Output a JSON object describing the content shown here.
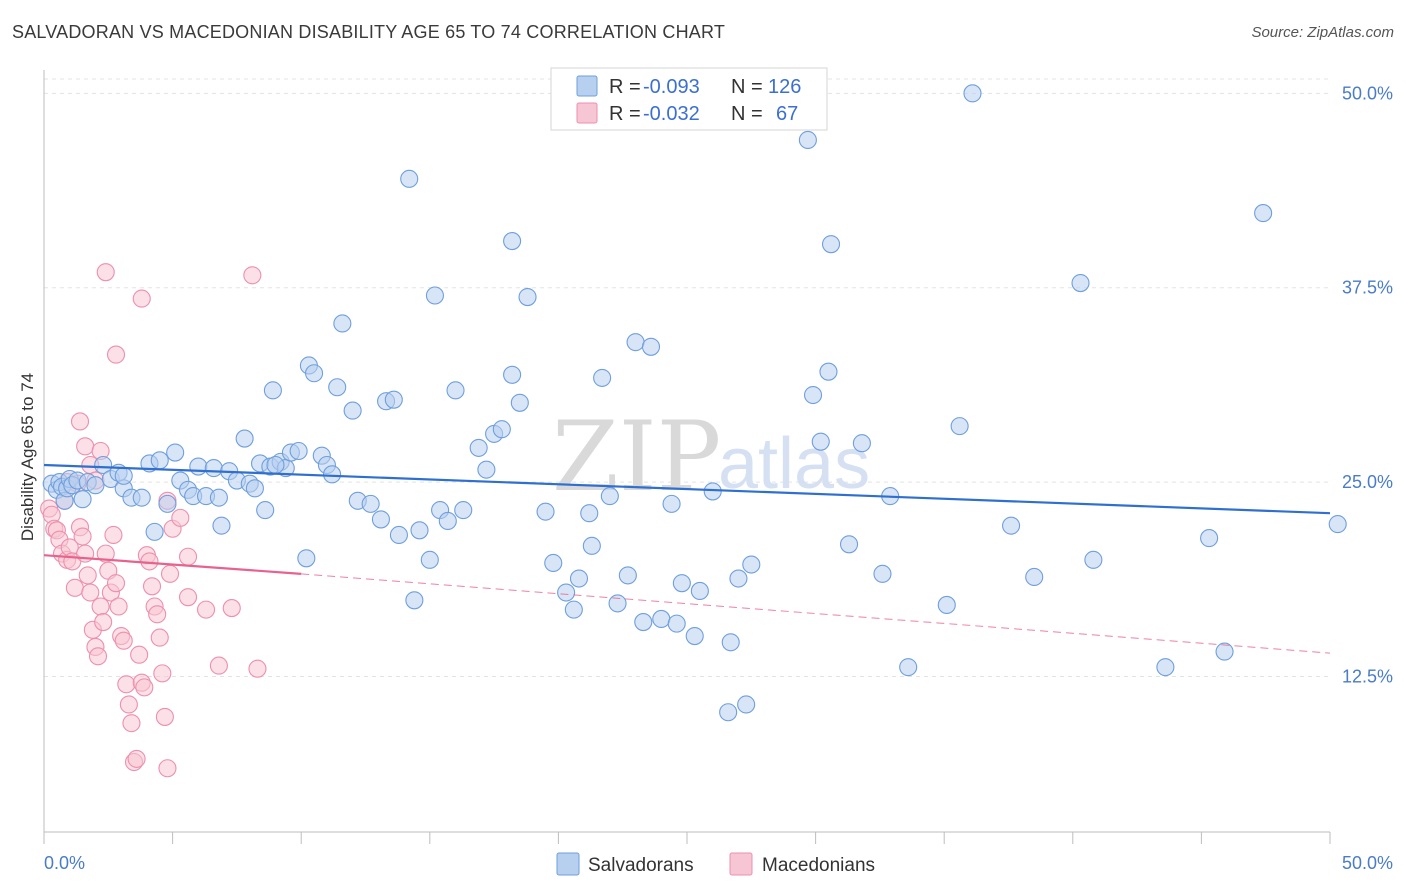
{
  "title": "SALVADORAN VS MACEDONIAN DISABILITY AGE 65 TO 74 CORRELATION CHART",
  "source": "Source: ZipAtlas.com",
  "watermark": {
    "zip": "ZIP",
    "atlas": "atlas"
  },
  "colors": {
    "blue_fill": "#b8d0f0",
    "blue_stroke": "#6f9fdc",
    "blue_line": "#2f6fd0",
    "pink_fill": "#f7c6d4",
    "pink_stroke": "#ee8fad",
    "pink_line": "#e8628e",
    "grid": "#e3e3e3",
    "axis": "#bdbdbd",
    "tick_label": "#4a7cc7"
  },
  "legend": {
    "rows": [
      {
        "r_label": "R =",
        "r_value": "-0.093",
        "n_label": "N =",
        "n_value": "126",
        "color": "blue"
      },
      {
        "r_label": "R =",
        "r_value": "-0.032",
        "n_label": "N =",
        "n_value": "67",
        "color": "pink"
      }
    ]
  },
  "bottom_legend": [
    {
      "label": "Salvadorans",
      "color": "blue"
    },
    {
      "label": "Macedonians",
      "color": "pink"
    }
  ],
  "chart_data": {
    "type": "scatter",
    "title": "SALVADORAN VS MACEDONIAN DISABILITY AGE 65 TO 74 CORRELATION CHART",
    "xlabel": "",
    "ylabel": "Disability Age 65 to 74",
    "xlim": [
      0,
      50
    ],
    "ylim": [
      2.5,
      51.5
    ],
    "x_tick_labels": [
      "0.0%",
      "50.0%"
    ],
    "y_ticks": [
      12.5,
      25.0,
      37.5,
      50.0
    ],
    "y_tick_labels": [
      "12.5%",
      "25.0%",
      "37.5%",
      "50.0%"
    ],
    "grid": true,
    "legend_position": "top-center",
    "series": [
      {
        "name": "Salvadorans",
        "color": "blue",
        "trend": {
          "x": [
            0,
            50
          ],
          "y": [
            26.1,
            23.0
          ],
          "style": "solid"
        },
        "points": [
          [
            0.3,
            24.9
          ],
          [
            0.5,
            24.5
          ],
          [
            0.6,
            25.0
          ],
          [
            0.7,
            24.7
          ],
          [
            0.8,
            23.8
          ],
          [
            0.9,
            24.6
          ],
          [
            1.0,
            25.2
          ],
          [
            1.1,
            24.8
          ],
          [
            1.3,
            25.1
          ],
          [
            1.5,
            23.9
          ],
          [
            1.7,
            25.0
          ],
          [
            2.0,
            24.8
          ],
          [
            2.3,
            26.1
          ],
          [
            2.6,
            25.2
          ],
          [
            2.9,
            25.6
          ],
          [
            3.1,
            24.6
          ],
          [
            3.4,
            24.0
          ],
          [
            3.8,
            24.0
          ],
          [
            4.1,
            26.2
          ],
          [
            4.3,
            21.8
          ],
          [
            4.5,
            26.4
          ],
          [
            4.8,
            23.6
          ],
          [
            5.1,
            26.9
          ],
          [
            5.3,
            25.1
          ],
          [
            5.6,
            24.5
          ],
          [
            5.8,
            24.1
          ],
          [
            6.0,
            26.0
          ],
          [
            6.3,
            24.1
          ],
          [
            6.6,
            25.9
          ],
          [
            6.8,
            24.0
          ],
          [
            6.9,
            22.2
          ],
          [
            7.2,
            25.7
          ],
          [
            7.5,
            25.1
          ],
          [
            7.8,
            27.8
          ],
          [
            8.0,
            24.9
          ],
          [
            8.2,
            24.6
          ],
          [
            8.4,
            26.2
          ],
          [
            8.6,
            23.2
          ],
          [
            8.8,
            26.0
          ],
          [
            8.9,
            30.9
          ],
          [
            9.2,
            26.3
          ],
          [
            9.4,
            25.9
          ],
          [
            9.6,
            26.9
          ],
          [
            9.9,
            27.0
          ],
          [
            10.2,
            20.1
          ],
          [
            10.3,
            32.5
          ],
          [
            10.5,
            32.0
          ],
          [
            10.8,
            26.7
          ],
          [
            11.0,
            26.1
          ],
          [
            11.2,
            25.5
          ],
          [
            11.4,
            31.1
          ],
          [
            11.6,
            35.2
          ],
          [
            12.0,
            29.6
          ],
          [
            12.2,
            23.8
          ],
          [
            12.7,
            23.6
          ],
          [
            13.1,
            22.6
          ],
          [
            13.3,
            30.2
          ],
          [
            13.6,
            30.3
          ],
          [
            13.8,
            21.6
          ],
          [
            14.2,
            44.5
          ],
          [
            14.4,
            17.4
          ],
          [
            14.6,
            21.9
          ],
          [
            15.0,
            20.0
          ],
          [
            15.2,
            37.0
          ],
          [
            15.4,
            23.2
          ],
          [
            15.7,
            22.5
          ],
          [
            16.0,
            30.9
          ],
          [
            16.3,
            23.2
          ],
          [
            16.9,
            27.2
          ],
          [
            17.2,
            25.8
          ],
          [
            17.5,
            28.1
          ],
          [
            17.8,
            28.4
          ],
          [
            18.2,
            31.9
          ],
          [
            18.2,
            40.5
          ],
          [
            18.5,
            30.1
          ],
          [
            18.8,
            36.9
          ],
          [
            19.5,
            23.1
          ],
          [
            19.8,
            19.8
          ],
          [
            20.3,
            17.9
          ],
          [
            20.6,
            16.8
          ],
          [
            20.8,
            18.8
          ],
          [
            21.2,
            23.0
          ],
          [
            21.3,
            20.9
          ],
          [
            21.7,
            31.7
          ],
          [
            22.0,
            24.1
          ],
          [
            22.3,
            17.2
          ],
          [
            22.7,
            19.0
          ],
          [
            23.0,
            34.0
          ],
          [
            23.3,
            16.0
          ],
          [
            23.6,
            33.7
          ],
          [
            24.0,
            16.2
          ],
          [
            24.4,
            23.6
          ],
          [
            24.6,
            15.9
          ],
          [
            24.8,
            18.5
          ],
          [
            25.5,
            18.0
          ],
          [
            26.0,
            24.4
          ],
          [
            26.6,
            10.2
          ],
          [
            26.7,
            14.7
          ],
          [
            27.0,
            18.8
          ],
          [
            27.3,
            10.7
          ],
          [
            27.5,
            19.7
          ],
          [
            25.3,
            15.1
          ],
          [
            29.7,
            47.0
          ],
          [
            29.9,
            30.6
          ],
          [
            30.2,
            27.6
          ],
          [
            30.5,
            32.1
          ],
          [
            30.6,
            40.3
          ],
          [
            31.3,
            21.0
          ],
          [
            31.8,
            27.5
          ],
          [
            32.6,
            19.1
          ],
          [
            32.9,
            24.1
          ],
          [
            33.6,
            13.1
          ],
          [
            35.1,
            17.1
          ],
          [
            35.6,
            28.6
          ],
          [
            36.1,
            50.0
          ],
          [
            37.6,
            22.2
          ],
          [
            38.5,
            18.9
          ],
          [
            40.3,
            37.8
          ],
          [
            40.8,
            20.0
          ],
          [
            43.6,
            13.1
          ],
          [
            45.3,
            21.4
          ],
          [
            45.9,
            14.1
          ],
          [
            47.4,
            42.3
          ],
          [
            50.3,
            22.3
          ],
          [
            9.0,
            26.1
          ],
          [
            3.1,
            25.4
          ]
        ]
      },
      {
        "name": "Macedonians",
        "color": "pink",
        "trend_solid": {
          "x": [
            0,
            10.0
          ],
          "y": [
            20.3,
            19.1
          ]
        },
        "trend_dashed": {
          "x": [
            10.0,
            50
          ],
          "y": [
            19.1,
            14.0
          ]
        },
        "points": [
          [
            0.2,
            23.3
          ],
          [
            0.3,
            22.9
          ],
          [
            0.4,
            22.0
          ],
          [
            0.5,
            21.9
          ],
          [
            0.6,
            21.3
          ],
          [
            0.7,
            20.4
          ],
          [
            0.8,
            23.8
          ],
          [
            0.9,
            20.0
          ],
          [
            1.0,
            20.8
          ],
          [
            1.1,
            19.9
          ],
          [
            1.2,
            18.2
          ],
          [
            1.3,
            24.9
          ],
          [
            1.4,
            22.1
          ],
          [
            1.5,
            21.5
          ],
          [
            1.6,
            20.4
          ],
          [
            1.7,
            19.0
          ],
          [
            1.8,
            17.9
          ],
          [
            1.9,
            15.5
          ],
          [
            2.0,
            14.4
          ],
          [
            2.1,
            13.8
          ],
          [
            2.2,
            17.0
          ],
          [
            2.3,
            16.0
          ],
          [
            2.4,
            20.4
          ],
          [
            2.5,
            19.3
          ],
          [
            2.6,
            17.9
          ],
          [
            2.7,
            21.6
          ],
          [
            2.8,
            18.5
          ],
          [
            2.9,
            17.0
          ],
          [
            3.0,
            15.1
          ],
          [
            3.1,
            14.8
          ],
          [
            3.2,
            12.0
          ],
          [
            3.3,
            10.7
          ],
          [
            3.4,
            9.5
          ],
          [
            3.5,
            7.0
          ],
          [
            3.6,
            7.2
          ],
          [
            3.7,
            13.9
          ],
          [
            3.8,
            12.1
          ],
          [
            3.9,
            11.8
          ],
          [
            4.0,
            20.3
          ],
          [
            4.1,
            19.9
          ],
          [
            4.2,
            18.3
          ],
          [
            4.3,
            17.0
          ],
          [
            4.4,
            16.5
          ],
          [
            4.5,
            15.0
          ],
          [
            4.6,
            12.7
          ],
          [
            4.7,
            9.9
          ],
          [
            4.8,
            6.6
          ],
          [
            4.9,
            19.1
          ],
          [
            5.0,
            22.0
          ],
          [
            1.4,
            28.9
          ],
          [
            1.6,
            27.3
          ],
          [
            1.8,
            26.1
          ],
          [
            2.0,
            25.1
          ],
          [
            2.2,
            27.0
          ],
          [
            2.4,
            38.5
          ],
          [
            2.8,
            33.2
          ],
          [
            3.8,
            36.8
          ],
          [
            4.8,
            23.8
          ],
          [
            5.3,
            22.7
          ],
          [
            5.6,
            20.2
          ],
          [
            8.1,
            38.3
          ],
          [
            8.3,
            13.0
          ],
          [
            6.3,
            16.8
          ],
          [
            6.8,
            13.2
          ],
          [
            7.3,
            16.9
          ],
          [
            5.6,
            17.6
          ],
          [
            0.9,
            25.0
          ]
        ]
      }
    ]
  }
}
